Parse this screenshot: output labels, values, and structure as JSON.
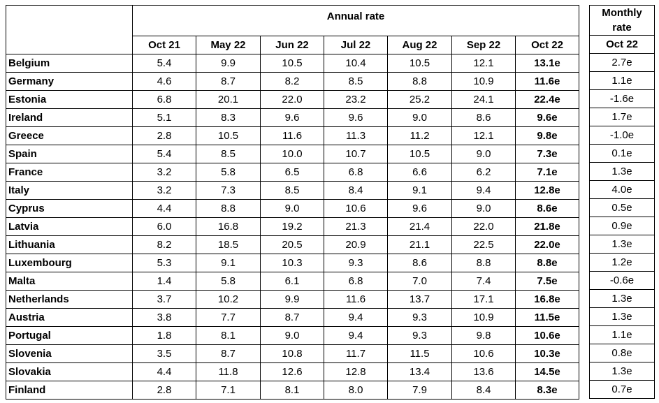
{
  "header": {
    "annual_rate_label": "Annual rate",
    "monthly_rate_label_line1": "Monthly",
    "monthly_rate_label_line2": "rate",
    "months": [
      "Oct 21",
      "May 22",
      "Jun 22",
      "Jul 22",
      "Aug 22",
      "Sep 22",
      "Oct 22"
    ],
    "monthly_month": "Oct 22"
  },
  "rows": [
    {
      "country": "Belgium",
      "values": [
        "5.4",
        "9.9",
        "10.5",
        "10.4",
        "10.5",
        "12.1",
        "13.1e"
      ],
      "monthly": "2.7e"
    },
    {
      "country": "Germany",
      "values": [
        "4.6",
        "8.7",
        "8.2",
        "8.5",
        "8.8",
        "10.9",
        "11.6e"
      ],
      "monthly": "1.1e"
    },
    {
      "country": "Estonia",
      "values": [
        "6.8",
        "20.1",
        "22.0",
        "23.2",
        "25.2",
        "24.1",
        "22.4e"
      ],
      "monthly": "-1.6e"
    },
    {
      "country": "Ireland",
      "values": [
        "5.1",
        "8.3",
        "9.6",
        "9.6",
        "9.0",
        "8.6",
        "9.6e"
      ],
      "monthly": "1.7e"
    },
    {
      "country": "Greece",
      "values": [
        "2.8",
        "10.5",
        "11.6",
        "11.3",
        "11.2",
        "12.1",
        "9.8e"
      ],
      "monthly": "-1.0e"
    },
    {
      "country": "Spain",
      "values": [
        "5.4",
        "8.5",
        "10.0",
        "10.7",
        "10.5",
        "9.0",
        "7.3e"
      ],
      "monthly": "0.1e"
    },
    {
      "country": "France",
      "values": [
        "3.2",
        "5.8",
        "6.5",
        "6.8",
        "6.6",
        "6.2",
        "7.1e"
      ],
      "monthly": "1.3e"
    },
    {
      "country": "Italy",
      "values": [
        "3.2",
        "7.3",
        "8.5",
        "8.4",
        "9.1",
        "9.4",
        "12.8e"
      ],
      "monthly": "4.0e"
    },
    {
      "country": "Cyprus",
      "values": [
        "4.4",
        "8.8",
        "9.0",
        "10.6",
        "9.6",
        "9.0",
        "8.6e"
      ],
      "monthly": "0.5e"
    },
    {
      "country": "Latvia",
      "values": [
        "6.0",
        "16.8",
        "19.2",
        "21.3",
        "21.4",
        "22.0",
        "21.8e"
      ],
      "monthly": "0.9e"
    },
    {
      "country": "Lithuania",
      "values": [
        "8.2",
        "18.5",
        "20.5",
        "20.9",
        "21.1",
        "22.5",
        "22.0e"
      ],
      "monthly": "1.3e"
    },
    {
      "country": "Luxembourg",
      "values": [
        "5.3",
        "9.1",
        "10.3",
        "9.3",
        "8.6",
        "8.8",
        "8.8e"
      ],
      "monthly": "1.2e"
    },
    {
      "country": "Malta",
      "values": [
        "1.4",
        "5.8",
        "6.1",
        "6.8",
        "7.0",
        "7.4",
        "7.5e"
      ],
      "monthly": "-0.6e"
    },
    {
      "country": "Netherlands",
      "values": [
        "3.7",
        "10.2",
        "9.9",
        "11.6",
        "13.7",
        "17.1",
        "16.8e"
      ],
      "monthly": "1.3e"
    },
    {
      "country": "Austria",
      "values": [
        "3.8",
        "7.7",
        "8.7",
        "9.4",
        "9.3",
        "10.9",
        "11.5e"
      ],
      "monthly": "1.3e"
    },
    {
      "country": "Portugal",
      "values": [
        "1.8",
        "8.1",
        "9.0",
        "9.4",
        "9.3",
        "9.8",
        "10.6e"
      ],
      "monthly": "1.1e"
    },
    {
      "country": "Slovenia",
      "values": [
        "3.5",
        "8.7",
        "10.8",
        "11.7",
        "11.5",
        "10.6",
        "10.3e"
      ],
      "monthly": "0.8e"
    },
    {
      "country": "Slovakia",
      "values": [
        "4.4",
        "11.8",
        "12.6",
        "12.8",
        "13.4",
        "13.6",
        "14.5e"
      ],
      "monthly": "1.3e"
    },
    {
      "country": "Finland",
      "values": [
        "2.8",
        "7.1",
        "8.1",
        "8.0",
        "7.9",
        "8.4",
        "8.3e"
      ],
      "monthly": "0.7e"
    }
  ]
}
